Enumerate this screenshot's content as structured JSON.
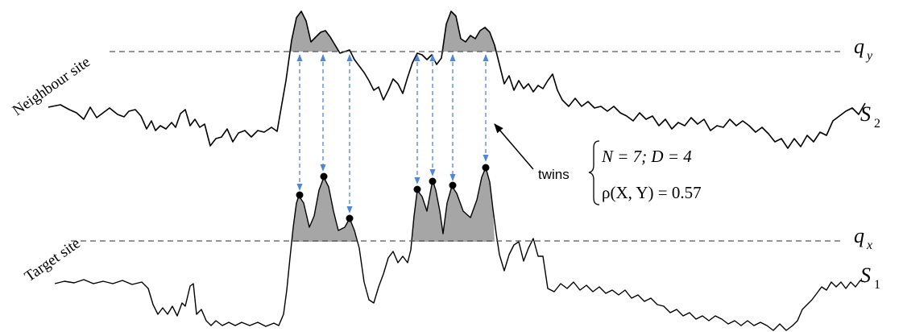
{
  "labels": {
    "neighbour_site": "Neighbour site",
    "target_site": "Target site",
    "twins": "twins"
  },
  "thresholds": {
    "qy": {
      "base": "q",
      "sub": "y"
    },
    "qx": {
      "base": "q",
      "sub": "x"
    }
  },
  "series": {
    "s2": {
      "base": "S",
      "sub": "2"
    },
    "s1": {
      "base": "S",
      "sub": "1"
    }
  },
  "stats": {
    "line1": "N = 7; D = 4",
    "line2": "ρ(X, Y) = 0.57"
  },
  "colors": {
    "curve": "#000000",
    "fill": "#a6a6a6",
    "arrow": "#4f86d9",
    "threshold": "#555555"
  }
}
